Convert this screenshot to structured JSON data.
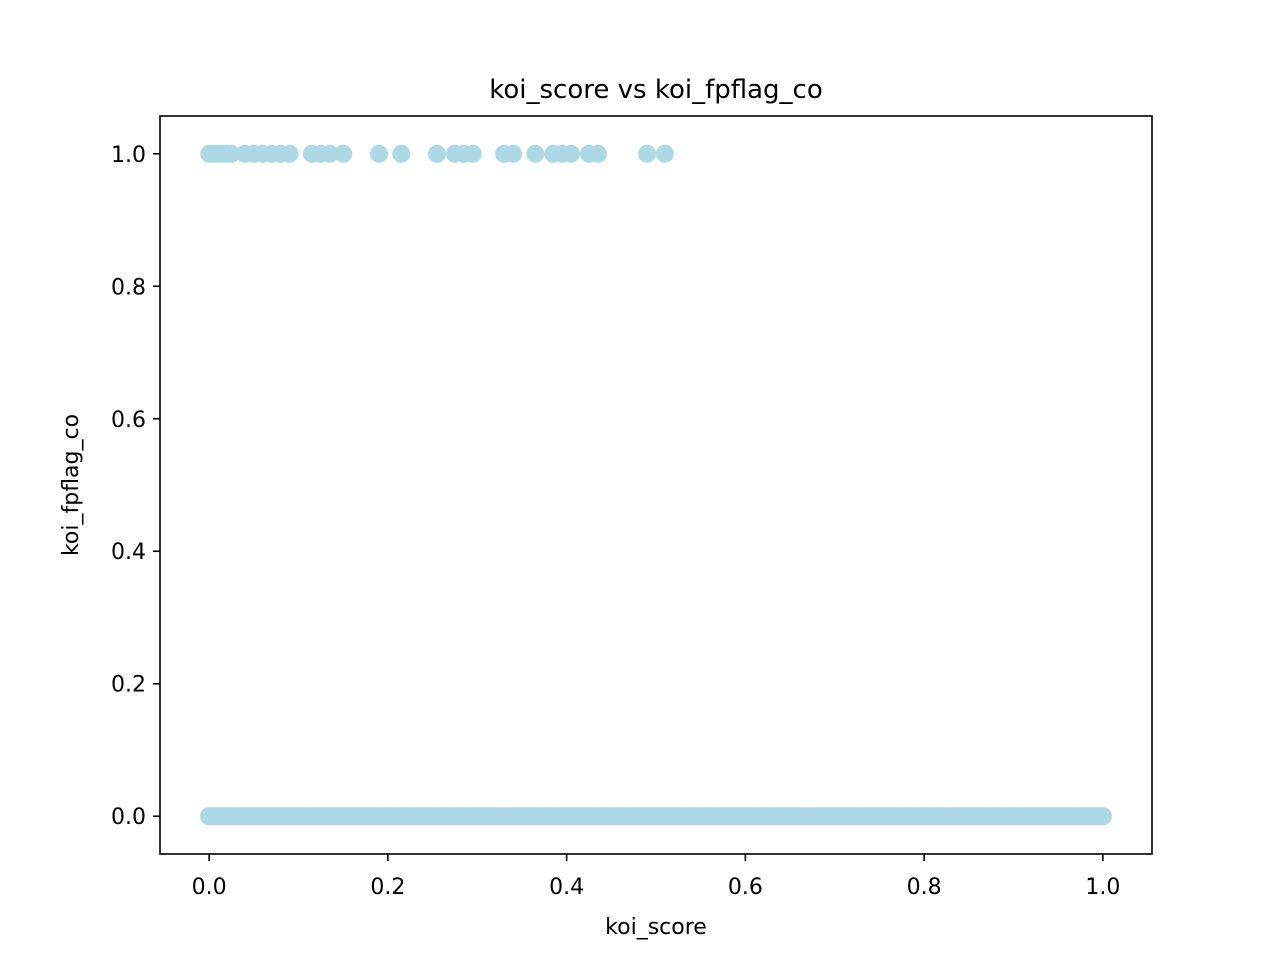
{
  "chart_data": {
    "type": "scatter",
    "title": "koi_score vs koi_fpflag_co",
    "xlabel": "koi_score",
    "ylabel": "koi_fpflag_co",
    "xlim": [
      -0.055,
      1.055
    ],
    "ylim": [
      -0.057,
      1.057
    ],
    "xticks": [
      0.0,
      0.2,
      0.4,
      0.6,
      0.8,
      1.0
    ],
    "xtick_labels": [
      "0.0",
      "0.2",
      "0.4",
      "0.6",
      "0.8",
      "1.0"
    ],
    "yticks": [
      0.0,
      0.2,
      0.4,
      0.6,
      0.8,
      1.0
    ],
    "ytick_labels": [
      "0.0",
      "0.2",
      "0.4",
      "0.6",
      "0.8",
      "1.0"
    ],
    "grid": false,
    "legend": "none",
    "marker_color": "#add8e6",
    "series": [
      {
        "points": [
          [
            0.0,
            1
          ],
          [
            0.005,
            1
          ],
          [
            0.01,
            1
          ],
          [
            0.015,
            1
          ],
          [
            0.02,
            1
          ],
          [
            0.025,
            1
          ],
          [
            0.04,
            1
          ],
          [
            0.05,
            1
          ],
          [
            0.06,
            1
          ],
          [
            0.07,
            1
          ],
          [
            0.08,
            1
          ],
          [
            0.09,
            1
          ],
          [
            0.115,
            1
          ],
          [
            0.125,
            1
          ],
          [
            0.135,
            1
          ],
          [
            0.15,
            1
          ],
          [
            0.19,
            1
          ],
          [
            0.215,
            1
          ],
          [
            0.255,
            1
          ],
          [
            0.275,
            1
          ],
          [
            0.285,
            1
          ],
          [
            0.295,
            1
          ],
          [
            0.33,
            1
          ],
          [
            0.34,
            1
          ],
          [
            0.365,
            1
          ],
          [
            0.385,
            1
          ],
          [
            0.395,
            1
          ],
          [
            0.405,
            1
          ],
          [
            0.425,
            1
          ],
          [
            0.435,
            1
          ],
          [
            0.49,
            1
          ],
          [
            0.51,
            1
          ],
          [
            0.0,
            0
          ],
          [
            0.02,
            0
          ],
          [
            0.04,
            0
          ],
          [
            0.06,
            0
          ],
          [
            0.08,
            0
          ],
          [
            0.1,
            0
          ],
          [
            0.12,
            0
          ],
          [
            0.14,
            0
          ],
          [
            0.16,
            0
          ],
          [
            0.18,
            0
          ],
          [
            0.2,
            0
          ],
          [
            0.22,
            0
          ],
          [
            0.24,
            0
          ],
          [
            0.26,
            0
          ],
          [
            0.28,
            0
          ],
          [
            0.3,
            0
          ],
          [
            0.32,
            0
          ],
          [
            0.34,
            0
          ],
          [
            0.36,
            0
          ],
          [
            0.38,
            0
          ],
          [
            0.4,
            0
          ],
          [
            0.42,
            0
          ],
          [
            0.44,
            0
          ],
          [
            0.46,
            0
          ],
          [
            0.48,
            0
          ],
          [
            0.5,
            0
          ],
          [
            0.52,
            0
          ],
          [
            0.54,
            0
          ],
          [
            0.56,
            0
          ],
          [
            0.58,
            0
          ],
          [
            0.6,
            0
          ],
          [
            0.62,
            0
          ],
          [
            0.64,
            0
          ],
          [
            0.66,
            0
          ],
          [
            0.68,
            0
          ],
          [
            0.7,
            0
          ],
          [
            0.72,
            0
          ],
          [
            0.74,
            0
          ],
          [
            0.76,
            0
          ],
          [
            0.78,
            0
          ],
          [
            0.8,
            0
          ],
          [
            0.82,
            0
          ],
          [
            0.84,
            0
          ],
          [
            0.86,
            0
          ],
          [
            0.88,
            0
          ],
          [
            0.9,
            0
          ],
          [
            0.92,
            0
          ],
          [
            0.94,
            0
          ],
          [
            0.96,
            0
          ],
          [
            0.98,
            0
          ],
          [
            1.0,
            0
          ]
        ]
      }
    ]
  }
}
